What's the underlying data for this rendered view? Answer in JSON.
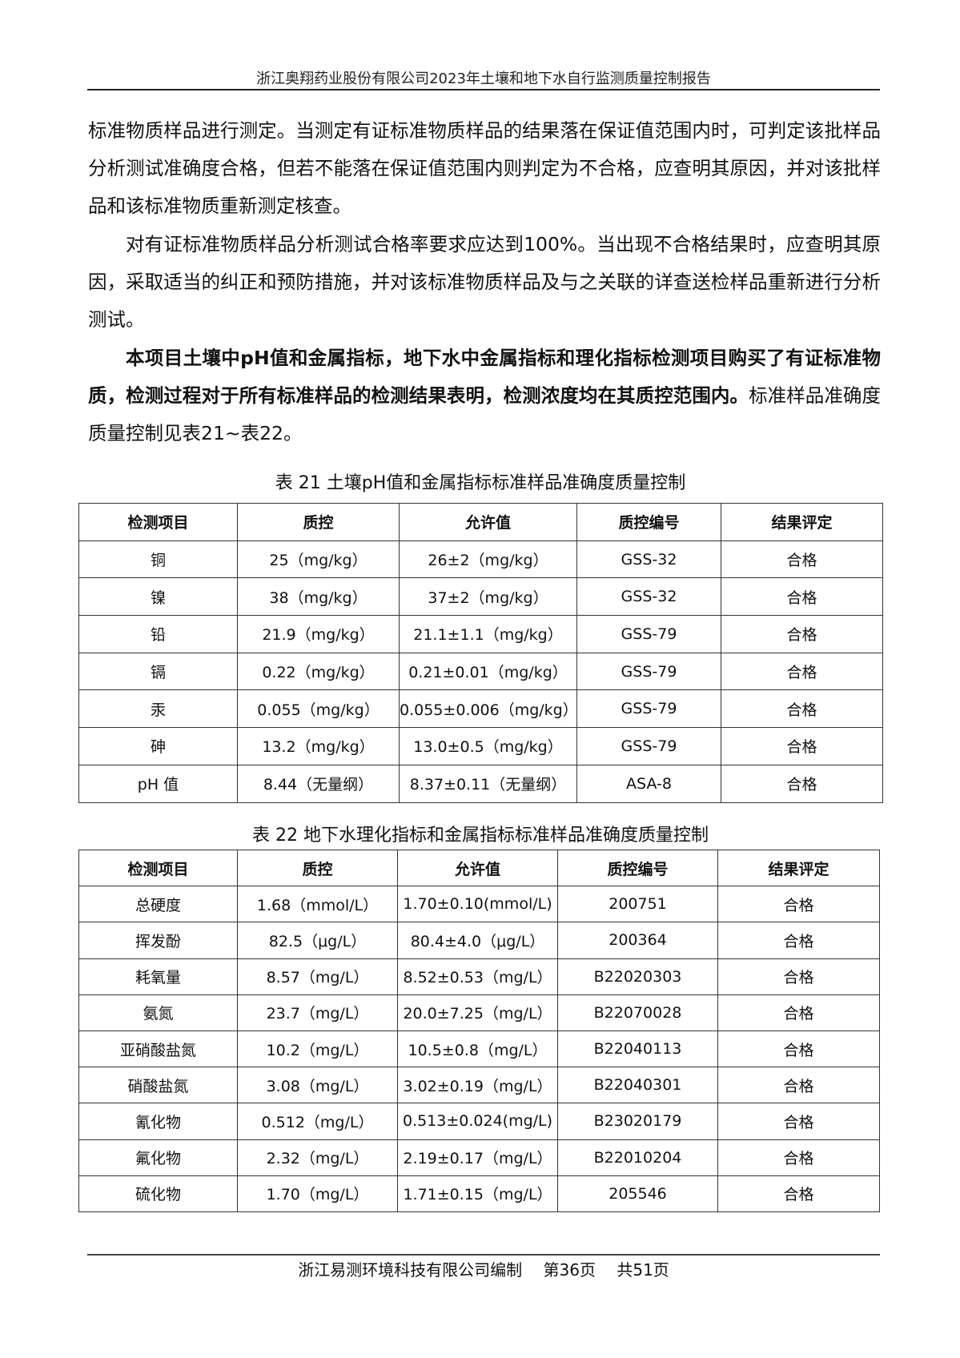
{
  "header": {
    "title": "浙江奥翔药业股份有限公司2023年土壤和地下水自行监测质量控制报告"
  },
  "paragraphs": {
    "p1": "标准物质样品进行测定。当测定有证标准物质样品的结果落在保证值范围内时，可判定该批样品分析测试准确度合格，但若不能落在保证值范围内则判定为不合格，应查明其原因，并对该批样品和该标准物质重新测定核查。",
    "p2": "对有证标准物质样品分析测试合格率要求应达到100%。当出现不合格结果时，应查明其原因，采取适当的纠正和预防措施，并对该标准物质样品及与之关联的详查送检样品重新进行分析测试。",
    "p3_bold": "本项目土壤中pH值和金属指标，地下水中金属指标和理化指标检测项目购买了有证标准物质，检测过程对于所有标准样品的检测结果表明，检测浓度均在其质控范围内。",
    "p3_normal": "标准样品准确度质量控制见表21~表22。"
  },
  "table21": {
    "caption": "表 21  土壤pH值和金属指标标准样品准确度质量控制",
    "headers": [
      "检测项目",
      "质控",
      "允许值",
      "质控编号",
      "结果评定"
    ],
    "rows": [
      [
        "铜",
        "25（mg/kg）",
        "26±2（mg/kg）",
        "GSS-32",
        "合格"
      ],
      [
        "镍",
        "38（mg/kg）",
        "37±2（mg/kg）",
        "GSS-32",
        "合格"
      ],
      [
        "铅",
        "21.9（mg/kg）",
        "21.1±1.1（mg/kg）",
        "GSS-79",
        "合格"
      ],
      [
        "镉",
        "0.22（mg/kg）",
        "0.21±0.01（mg/kg）",
        "GSS-79",
        "合格"
      ],
      [
        "汞",
        "0.055（mg/kg）",
        "0.055±0.006（mg/kg）",
        "GSS-79",
        "合格"
      ],
      [
        "砷",
        "13.2（mg/kg）",
        "13.0±0.5（mg/kg）",
        "GSS-79",
        "合格"
      ],
      [
        "pH 值",
        "8.44（无量纲）",
        "8.37±0.11（无量纲）",
        "ASA-8",
        "合格"
      ]
    ]
  },
  "table22": {
    "caption": "表  22  地下水理化指标和金属指标标准样品准确度质量控制",
    "headers": [
      "检测项目",
      "质控",
      "允许值",
      "质控编号",
      "结果评定"
    ],
    "rows": [
      [
        "总硬度",
        "1.68（mmol/L）",
        "1.70±0.10(mmol/L)",
        "200751",
        "合格"
      ],
      [
        "挥发酚",
        "82.5（μg/L）",
        "80.4±4.0（μg/L）",
        "200364",
        "合格"
      ],
      [
        "耗氧量",
        "8.57（mg/L）",
        "8.52±0.53（mg/L）",
        "B22020303",
        "合格"
      ],
      [
        "氨氮",
        "23.7（mg/L）",
        "20.0±7.25（mg/L）",
        "B22070028",
        "合格"
      ],
      [
        "亚硝酸盐氮",
        "10.2（mg/L）",
        "10.5±0.8（mg/L）",
        "B22040113",
        "合格"
      ],
      [
        "硝酸盐氮",
        "3.08（mg/L）",
        "3.02±0.19（mg/L）",
        "B22040301",
        "合格"
      ],
      [
        "氰化物",
        "0.512（mg/L）",
        "0.513±0.024(mg/L)",
        "B23020179",
        "合格"
      ],
      [
        "氟化物",
        "2.32（mg/L）",
        "2.19±0.17（mg/L）",
        "B22010204",
        "合格"
      ],
      [
        "硫化物",
        "1.70（mg/L）",
        "1.71±0.15（mg/L）",
        "205546",
        "合格"
      ]
    ]
  },
  "footer": {
    "company": "浙江易测环境科技有限公司编制",
    "page": "第36页",
    "total": "共51页"
  }
}
